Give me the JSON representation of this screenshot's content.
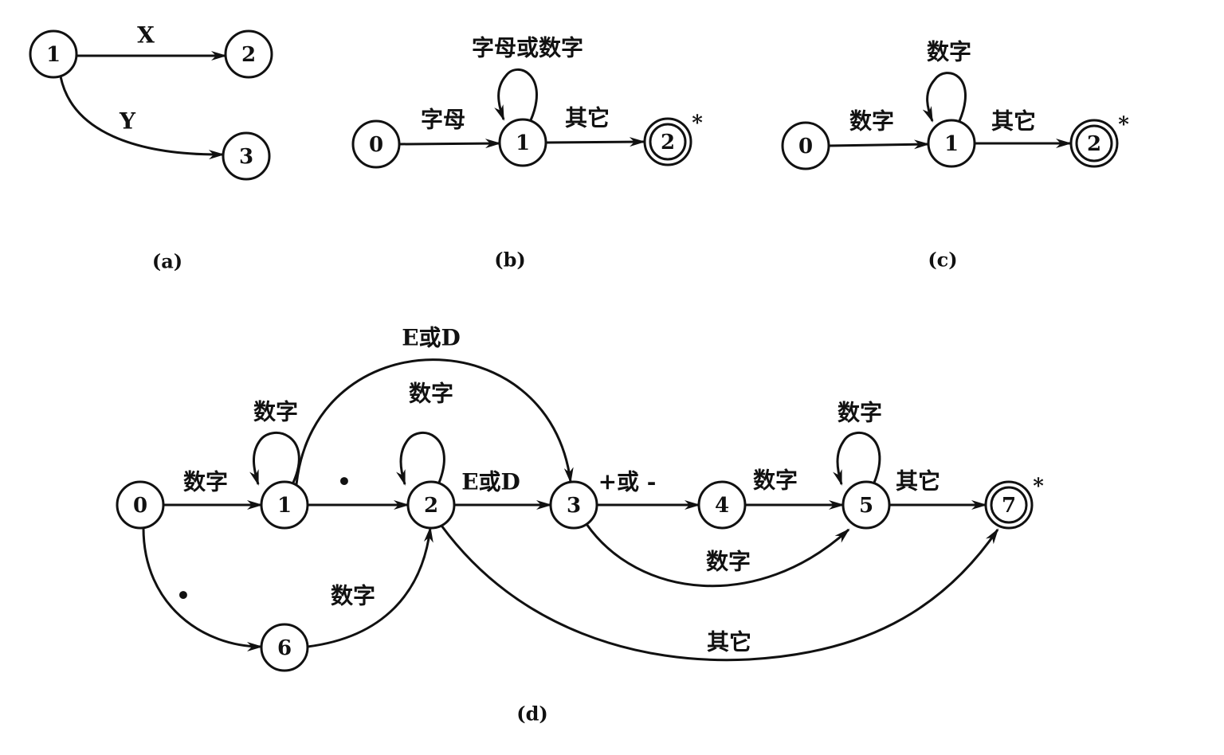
{
  "diagrams": [
    {
      "id": "a",
      "caption": "(a)",
      "nodes": [
        {
          "id": "1",
          "label": "1",
          "final": false
        },
        {
          "id": "2",
          "label": "2",
          "final": false
        },
        {
          "id": "3",
          "label": "3",
          "final": false
        }
      ],
      "edges": [
        {
          "from": "1",
          "to": "2",
          "label": "X"
        },
        {
          "from": "1",
          "to": "3",
          "label": "Y"
        }
      ]
    },
    {
      "id": "b",
      "caption": "(b)",
      "nodes": [
        {
          "id": "0",
          "label": "0",
          "final": false
        },
        {
          "id": "1",
          "label": "1",
          "final": false
        },
        {
          "id": "2",
          "label": "2",
          "final": true,
          "marker": "*"
        }
      ],
      "edges": [
        {
          "from": "0",
          "to": "1",
          "label": "字母"
        },
        {
          "from": "1",
          "to": "1",
          "label": "字母或数字"
        },
        {
          "from": "1",
          "to": "2",
          "label": "其它"
        }
      ]
    },
    {
      "id": "c",
      "caption": "(c)",
      "nodes": [
        {
          "id": "0",
          "label": "0",
          "final": false
        },
        {
          "id": "1",
          "label": "1",
          "final": false
        },
        {
          "id": "2",
          "label": "2",
          "final": true,
          "marker": "*"
        }
      ],
      "edges": [
        {
          "from": "0",
          "to": "1",
          "label": "数字"
        },
        {
          "from": "1",
          "to": "1",
          "label": "数字"
        },
        {
          "from": "1",
          "to": "2",
          "label": "其它"
        }
      ]
    },
    {
      "id": "d",
      "caption": "(d)",
      "nodes": [
        {
          "id": "0",
          "label": "0",
          "final": false
        },
        {
          "id": "1",
          "label": "1",
          "final": false
        },
        {
          "id": "2",
          "label": "2",
          "final": false
        },
        {
          "id": "3",
          "label": "3",
          "final": false
        },
        {
          "id": "4",
          "label": "4",
          "final": false
        },
        {
          "id": "5",
          "label": "5",
          "final": false
        },
        {
          "id": "6",
          "label": "6",
          "final": false
        },
        {
          "id": "7",
          "label": "7",
          "final": true,
          "marker": "*"
        }
      ],
      "edges": [
        {
          "from": "0",
          "to": "1",
          "label": "数字"
        },
        {
          "from": "1",
          "to": "1",
          "label": "数字"
        },
        {
          "from": "1",
          "to": "2",
          "label": "•"
        },
        {
          "from": "1",
          "to": "3",
          "label": "E或D"
        },
        {
          "from": "2",
          "to": "2",
          "label": "数字"
        },
        {
          "from": "2",
          "to": "3",
          "label": "E或D"
        },
        {
          "from": "3",
          "to": "4",
          "label": "+或 -"
        },
        {
          "from": "4",
          "to": "5",
          "label": "数字"
        },
        {
          "from": "5",
          "to": "5",
          "label": "数字"
        },
        {
          "from": "5",
          "to": "7",
          "label": "其它"
        },
        {
          "from": "3",
          "to": "5",
          "label": "数字"
        },
        {
          "from": "2",
          "to": "7",
          "label": "其它"
        },
        {
          "from": "0",
          "to": "6",
          "label": "•"
        },
        {
          "from": "6",
          "to": "2",
          "label": "数字"
        }
      ]
    }
  ]
}
